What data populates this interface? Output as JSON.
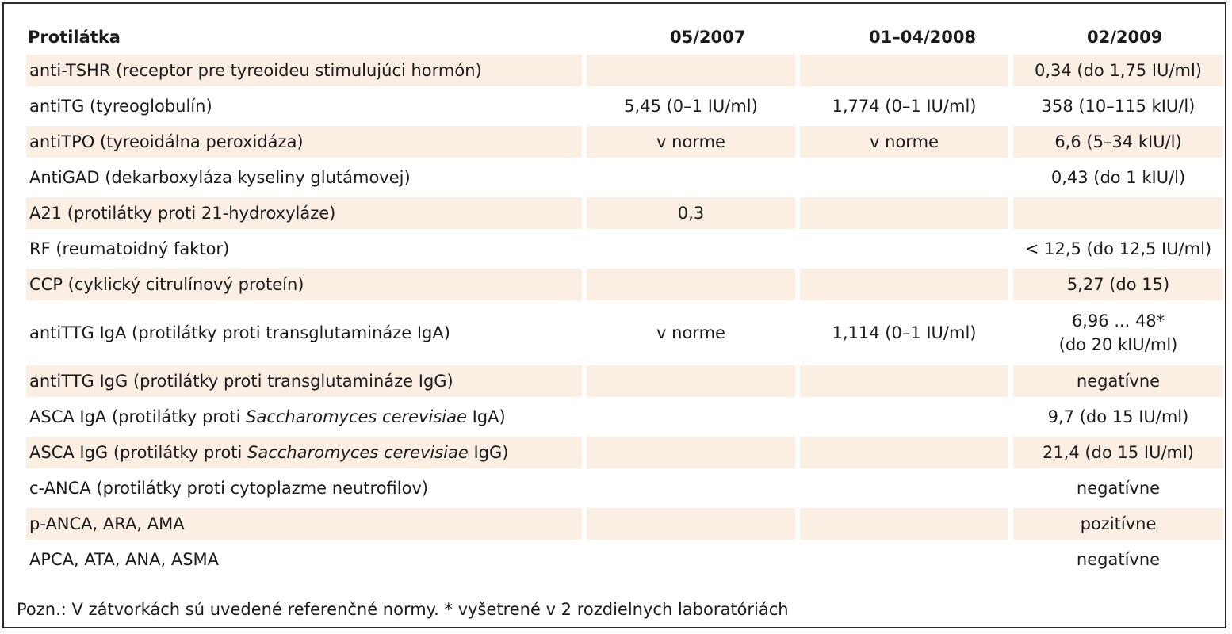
{
  "table": {
    "headers": [
      "Protilátka",
      "05/2007",
      "01–04/2008",
      "02/2009"
    ],
    "rows": [
      [
        "anti-TSHR (receptor pre tyreoideu stimulujúci hormón)",
        "",
        "",
        "0,34 (do 1,75 IU/ml)"
      ],
      [
        "antiTG (tyreoglobulín)",
        "5,45 (0–1 IU/ml)",
        "1,774 (0–1 IU/ml)",
        "358 (10–115 kIU/l)"
      ],
      [
        "antiTPO (tyreoidálna peroxidáza)",
        "v norme",
        "v norme",
        "6,6 (5–34 kIU/l)"
      ],
      [
        "AntiGAD (dekarboxyláza kyseliny glutámovej)",
        "",
        "",
        "0,43 (do 1 kIU/l)"
      ],
      [
        "A21 (protilátky proti 21-hydroxyláze)",
        "0,3",
        "",
        ""
      ],
      [
        "RF (reumatoidný faktor)",
        "",
        "",
        "< 12,5 (do 12,5 IU/ml)"
      ],
      [
        "CCP (cyklický citrulínový proteín)",
        "",
        "",
        "5,27 (do 15)"
      ],
      [
        "antiTTG IgA (protilátky proti transglutamináze IgA)",
        "v norme",
        "1,114 (0–1 IU/ml)",
        "6,96 ... 48*\n(do 20 kIU/ml)"
      ],
      [
        "antiTTG IgG (protilátky proti transglutamináze IgG)",
        "",
        "",
        "negatívne"
      ],
      [
        "ASCA IgA (protilátky proti Saccharomyces cerevisiae IgA)",
        "",
        "",
        "9,7 (do 15 IU/ml)"
      ],
      [
        "ASCA IgG (protilátky proti Saccharomyces cerevisiae IgG)",
        "",
        "",
        "21,4 (do 15 IU/ml)"
      ],
      [
        "c-ANCA (protilátky proti cytoplazme neutrofilov)",
        "",
        "",
        "negatívne"
      ],
      [
        "p-ANCA, ARA, AMA",
        "",
        "",
        "pozitívne"
      ],
      [
        "APCA, ATA, ANA, ASMA",
        "",
        "",
        "negatívne"
      ]
    ],
    "italic_phrase": "Saccharomyces cerevisiae",
    "shade_color": "#fbeee2"
  },
  "note": "Pozn.: V zátvorkách sú uvedené referenčné normy. * vyšetrené v 2 rozdielnych laboratóriách"
}
